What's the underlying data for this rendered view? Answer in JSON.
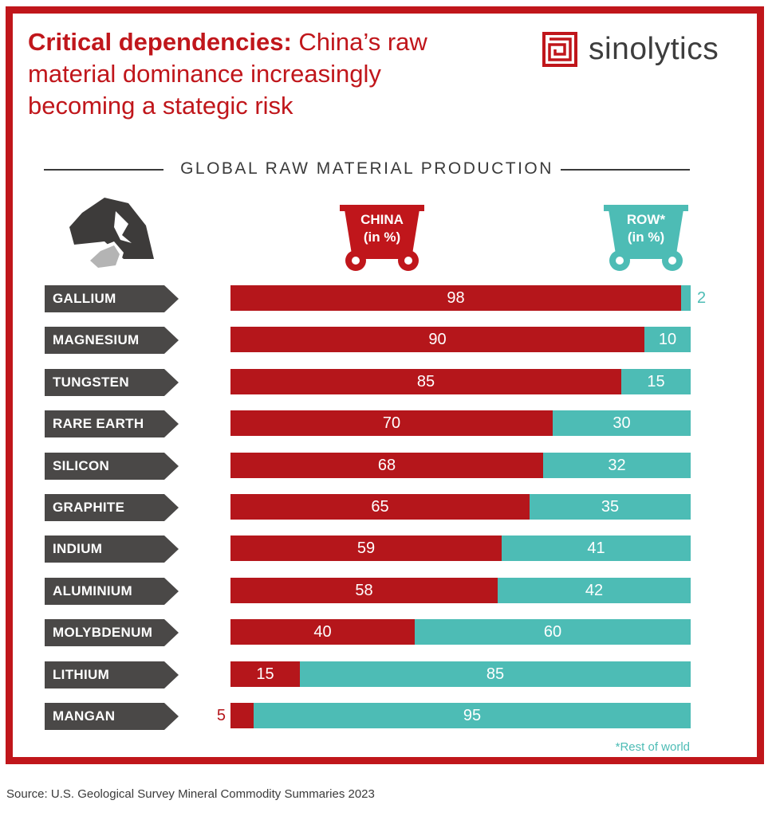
{
  "title": {
    "lead": "Critical dependencies:",
    "rest": "China’s raw material dominance increasingly becoming a stategic risk"
  },
  "brand": {
    "name": "sinolytics",
    "logo_icon": "maze-square-icon"
  },
  "section_heading": "GLOBAL RAW MATERIAL PRODUCTION",
  "decorations": {
    "rock_icon": "rock-icon",
    "china_cart_icon": "mining-cart-icon",
    "row_cart_icon": "mining-cart-icon"
  },
  "colors": {
    "china": "#b5161b",
    "row": "#4dbcb5",
    "frame": "#c0161b",
    "label_bg": "#4a4847"
  },
  "chart_data": {
    "type": "bar",
    "orientation": "horizontal",
    "stacked": true,
    "normalized_percent": true,
    "title": "GLOBAL RAW MATERIAL PRODUCTION",
    "categories": [
      "GALLIUM",
      "MAGNESIUM",
      "TUNGSTEN",
      "RARE EARTH",
      "SILICON",
      "GRAPHITE",
      "INDIUM",
      "ALUMINIUM",
      "MOLYBDENUM",
      "LITHIUM",
      "MANGAN"
    ],
    "series": [
      {
        "name": "CHINA (in %)",
        "name_lines": [
          "CHINA",
          "(in %)"
        ],
        "values": [
          98,
          90,
          85,
          70,
          68,
          65,
          59,
          58,
          40,
          15,
          5
        ]
      },
      {
        "name": "ROW* (in %)",
        "name_lines": [
          "ROW*",
          "(in %)"
        ],
        "values": [
          2,
          10,
          15,
          30,
          32,
          35,
          41,
          42,
          60,
          85,
          95
        ]
      }
    ],
    "xlim": [
      0,
      100
    ],
    "grid": false,
    "legend": "top"
  },
  "footnote": "*Rest of world",
  "source": "Source: U.S. Geological Survey Mineral Commodity Summaries 2023"
}
